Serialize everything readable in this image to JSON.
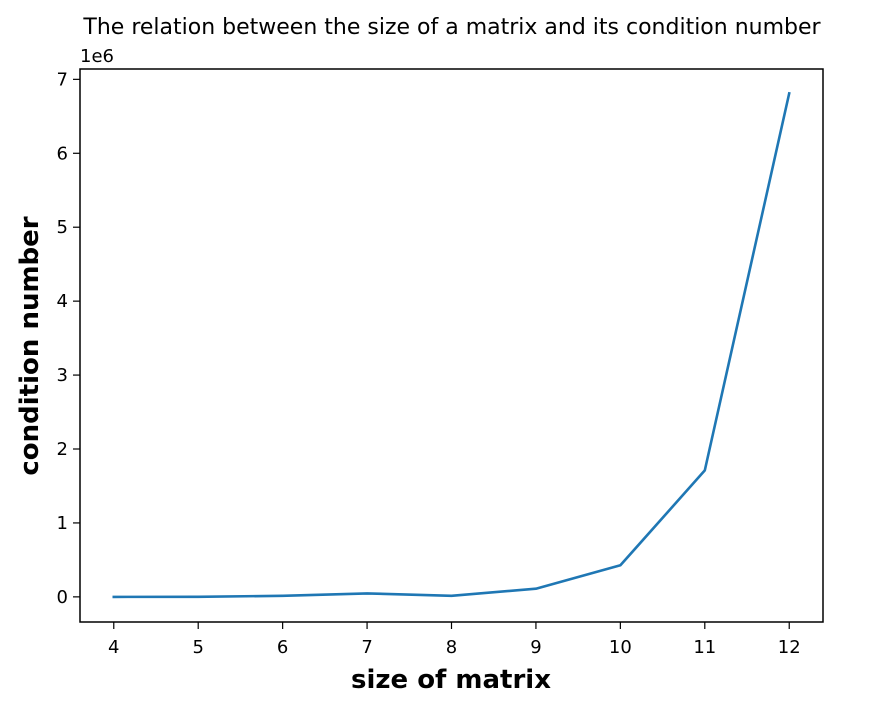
{
  "chart_data": {
    "type": "line",
    "title": "The relation between the size of a matrix and its condition number",
    "xlabel": "size of matrix",
    "ylabel": "condition number",
    "y_offset_label": "1e6",
    "xlim": [
      3.6,
      12.4
    ],
    "ylim": [
      -0.34,
      7.14
    ],
    "x_ticks": [
      4,
      5,
      6,
      7,
      8,
      9,
      10,
      11,
      12
    ],
    "y_ticks": [
      0,
      1,
      2,
      3,
      4,
      5,
      6,
      7
    ],
    "x_tick_labels": [
      "4",
      "5",
      "6",
      "7",
      "8",
      "9",
      "10",
      "11",
      "12"
    ],
    "y_tick_labels": [
      "0",
      "1",
      "2",
      "3",
      "4",
      "5",
      "6",
      "7"
    ],
    "grid": false,
    "series": [
      {
        "color": "#1f77b4",
        "x": [
          4,
          5,
          6,
          7,
          8,
          9,
          10,
          11,
          12
        ],
        "y": [
          1.55e-05,
          0.000477,
          0.015,
          0.0475,
          0.0149,
          0.1103,
          0.4271,
          1.7103,
          6.8103
        ]
      }
    ]
  }
}
